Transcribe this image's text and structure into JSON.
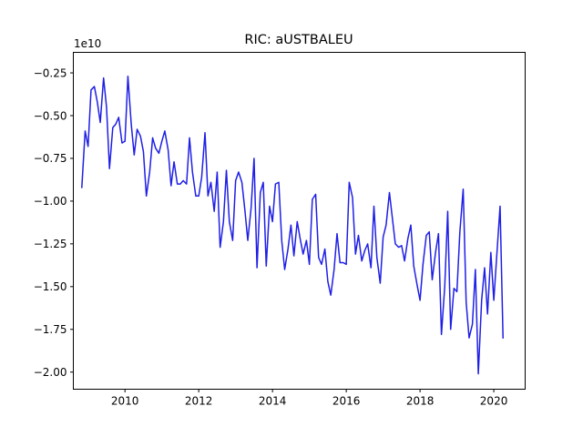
{
  "chart_data": {
    "type": "line",
    "title": "RIC: aUSTBALEU",
    "xlabel": "",
    "ylabel": "",
    "y_offset_label": "1e10",
    "xlim": [
      2008.6,
      2020.85
    ],
    "ylim": [
      -2.1,
      -0.13
    ],
    "x_ticks": [
      2010,
      2012,
      2014,
      2016,
      2018,
      2020
    ],
    "x_tick_labels": [
      "2010",
      "2012",
      "2014",
      "2016",
      "2018",
      "2020"
    ],
    "y_ticks": [
      -0.25,
      -0.5,
      -0.75,
      -1.0,
      -1.25,
      -1.5,
      -1.75,
      -2.0
    ],
    "y_tick_labels": [
      "−0.25",
      "−0.50",
      "−0.75",
      "−1.00",
      "−1.25",
      "−1.50",
      "−1.75",
      "−2.00"
    ],
    "grid": false,
    "series": [
      {
        "color": "#1f1fe6",
        "x": [
          2008.83,
          2008.92,
          2009.0,
          2009.08,
          2009.17,
          2009.25,
          2009.33,
          2009.42,
          2009.5,
          2009.58,
          2009.67,
          2009.75,
          2009.83,
          2009.92,
          2010.0,
          2010.08,
          2010.17,
          2010.25,
          2010.33,
          2010.42,
          2010.5,
          2010.58,
          2010.67,
          2010.75,
          2010.83,
          2010.92,
          2011.0,
          2011.08,
          2011.17,
          2011.25,
          2011.33,
          2011.42,
          2011.5,
          2011.58,
          2011.67,
          2011.75,
          2011.83,
          2011.92,
          2012.0,
          2012.08,
          2012.17,
          2012.25,
          2012.33,
          2012.42,
          2012.5,
          2012.58,
          2012.67,
          2012.75,
          2012.83,
          2012.92,
          2013.0,
          2013.08,
          2013.17,
          2013.25,
          2013.33,
          2013.42,
          2013.5,
          2013.58,
          2013.67,
          2013.75,
          2013.83,
          2013.92,
          2014.0,
          2014.08,
          2014.17,
          2014.25,
          2014.33,
          2014.42,
          2014.5,
          2014.58,
          2014.67,
          2014.75,
          2014.83,
          2014.92,
          2015.0,
          2015.08,
          2015.17,
          2015.25,
          2015.33,
          2015.42,
          2015.5,
          2015.58,
          2015.67,
          2015.75,
          2015.83,
          2015.92,
          2016.0,
          2016.08,
          2016.17,
          2016.25,
          2016.33,
          2016.42,
          2016.5,
          2016.58,
          2016.67,
          2016.75,
          2016.83,
          2016.92,
          2017.0,
          2017.08,
          2017.17,
          2017.25,
          2017.33,
          2017.42,
          2017.5,
          2017.58,
          2017.67,
          2017.75,
          2017.83,
          2017.92,
          2018.0,
          2018.08,
          2018.17,
          2018.25,
          2018.33,
          2018.42,
          2018.5,
          2018.58,
          2018.67,
          2018.75,
          2018.83,
          2018.92,
          2019.0,
          2019.08,
          2019.17,
          2019.25,
          2019.33,
          2019.42,
          2019.5,
          2019.58,
          2019.67,
          2019.75,
          2019.83,
          2019.92,
          2020.0,
          2020.08,
          2020.17,
          2020.25
        ],
        "y": [
          -0.92,
          -0.59,
          -0.68,
          -0.35,
          -0.33,
          -0.42,
          -0.54,
          -0.28,
          -0.45,
          -0.81,
          -0.57,
          -0.55,
          -0.51,
          -0.66,
          -0.65,
          -0.27,
          -0.55,
          -0.73,
          -0.58,
          -0.62,
          -0.71,
          -0.97,
          -0.83,
          -0.63,
          -0.69,
          -0.72,
          -0.65,
          -0.59,
          -0.7,
          -0.91,
          -0.77,
          -0.9,
          -0.9,
          -0.88,
          -0.9,
          -0.63,
          -0.83,
          -0.97,
          -0.97,
          -0.86,
          -0.6,
          -0.97,
          -0.89,
          -1.06,
          -0.83,
          -1.27,
          -1.12,
          -0.82,
          -1.12,
          -1.23,
          -0.88,
          -0.83,
          -0.89,
          -1.05,
          -1.23,
          -1.04,
          -0.75,
          -1.39,
          -0.95,
          -0.89,
          -1.38,
          -1.03,
          -1.12,
          -0.9,
          -0.89,
          -1.23,
          -1.4,
          -1.28,
          -1.14,
          -1.32,
          -1.12,
          -1.22,
          -1.31,
          -1.23,
          -1.37,
          -0.99,
          -0.96,
          -1.33,
          -1.37,
          -1.28,
          -1.47,
          -1.55,
          -1.4,
          -1.19,
          -1.36,
          -1.36,
          -1.37,
          -0.89,
          -0.98,
          -1.31,
          -1.2,
          -1.35,
          -1.29,
          -1.25,
          -1.39,
          -1.03,
          -1.33,
          -1.48,
          -1.21,
          -1.14,
          -0.95,
          -1.1,
          -1.25,
          -1.27,
          -1.26,
          -1.35,
          -1.22,
          -1.14,
          -1.38,
          -1.49,
          -1.58,
          -1.37,
          -1.2,
          -1.18,
          -1.46,
          -1.3,
          -1.19,
          -1.78,
          -1.5,
          -1.06,
          -1.75,
          -1.51,
          -1.53,
          -1.18,
          -0.93,
          -1.59,
          -1.8,
          -1.72,
          -1.4,
          -2.01,
          -1.58,
          -1.39,
          -1.66,
          -1.3,
          -1.58,
          -1.32,
          -1.03,
          -1.8
        ]
      }
    ]
  }
}
